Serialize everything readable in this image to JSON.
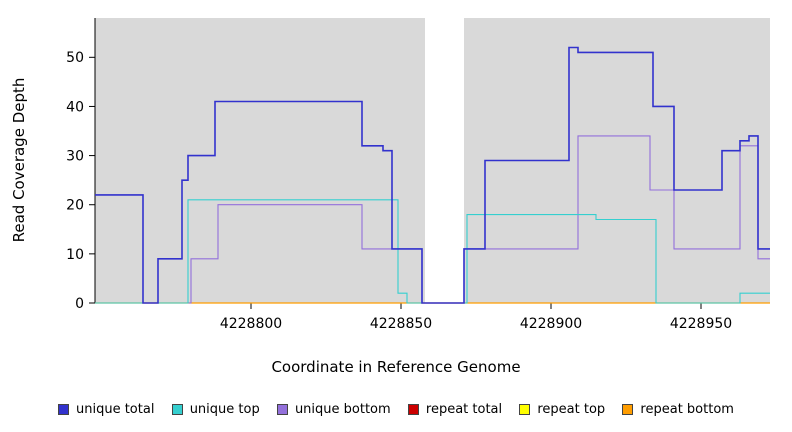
{
  "chart_data": {
    "type": "line",
    "subtype": "step-coverage-plot",
    "title": "",
    "xlabel": "Coordinate in Reference Genome",
    "ylabel": "Read Coverage Depth",
    "xlim": [
      4228748,
      4228973
    ],
    "ylim": [
      0,
      58
    ],
    "x_ticks": [
      4228800,
      4228850,
      4228900,
      4228950
    ],
    "y_ticks": [
      0,
      10,
      20,
      30,
      40,
      50
    ],
    "grid": false,
    "plot_background": "#d9d9d9",
    "page_background": "#ffffff",
    "gap_region": {
      "x_start": 4228858,
      "x_end": 4228871,
      "color": "#ffffff"
    },
    "legend_position": "bottom",
    "legend_order": [
      "unique total",
      "unique top",
      "unique bottom",
      "repeat total",
      "repeat top",
      "repeat bottom"
    ],
    "series": [
      {
        "name": "repeat total",
        "color": "#cc0000",
        "width": 1.1,
        "steps": [
          [
            4228748,
            0
          ]
        ]
      },
      {
        "name": "repeat top",
        "color": "#ffff00",
        "width": 1.1,
        "steps": [
          [
            4228748,
            0
          ]
        ]
      },
      {
        "name": "repeat bottom",
        "color": "#ff9d00",
        "width": 1.3,
        "steps": [
          [
            4228748,
            0
          ]
        ]
      },
      {
        "name": "unique bottom",
        "color": "#9370db",
        "width": 1.1,
        "steps": [
          [
            4228748,
            0
          ],
          [
            4228780,
            9
          ],
          [
            4228789,
            20
          ],
          [
            4228837,
            11
          ],
          [
            4228857,
            0
          ],
          [
            4228871,
            11
          ],
          [
            4228909,
            34
          ],
          [
            4228933,
            23
          ],
          [
            4228941,
            11
          ],
          [
            4228963,
            32
          ],
          [
            4228969,
            9
          ]
        ]
      },
      {
        "name": "unique top",
        "color": "#35cfcf",
        "width": 1.1,
        "steps": [
          [
            4228748,
            0
          ],
          [
            4228779,
            21
          ],
          [
            4228849,
            2
          ],
          [
            4228852,
            0
          ],
          [
            4228872,
            18
          ],
          [
            4228915,
            17
          ],
          [
            4228935,
            0
          ],
          [
            4228963,
            2
          ]
        ]
      },
      {
        "name": "unique total",
        "color": "#3232cd",
        "width": 1.6,
        "steps": [
          [
            4228748,
            22
          ],
          [
            4228764,
            0
          ],
          [
            4228769,
            9
          ],
          [
            4228777,
            25
          ],
          [
            4228779,
            30
          ],
          [
            4228788,
            41
          ],
          [
            4228837,
            32
          ],
          [
            4228844,
            31
          ],
          [
            4228847,
            11
          ],
          [
            4228857,
            0
          ],
          [
            4228871,
            11
          ],
          [
            4228878,
            29
          ],
          [
            4228906,
            52
          ],
          [
            4228909,
            51
          ],
          [
            4228934,
            40
          ],
          [
            4228941,
            23
          ],
          [
            4228957,
            31
          ],
          [
            4228963,
            33
          ],
          [
            4228966,
            34
          ],
          [
            4228969,
            11
          ]
        ]
      }
    ]
  }
}
